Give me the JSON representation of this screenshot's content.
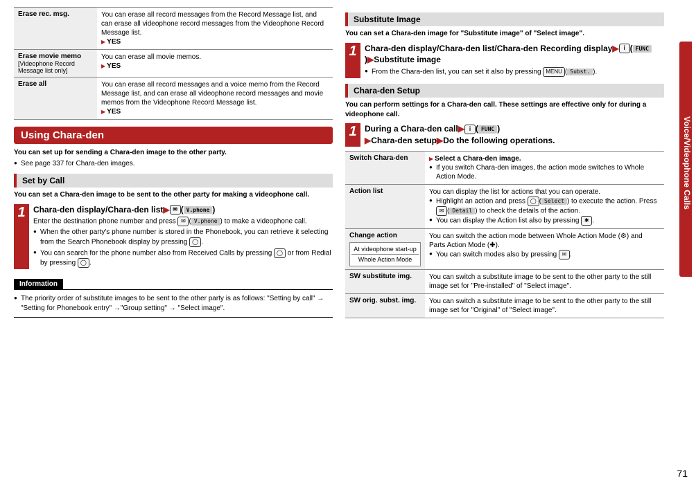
{
  "sideTab": "Voice/Videophone Calls",
  "pageNumber": "71",
  "leftCol": {
    "eraseRows": [
      {
        "label": "Erase rec. msg.",
        "sublabel": "",
        "desc": "You can erase all record messages from the Record Message list, and can erase all videophone record messages from the Videophone Record Message list.",
        "yes": "YES"
      },
      {
        "label": "Erase movie memo",
        "sublabel": "[Videophone Record Message list only]",
        "desc": "You can erase all movie memos.",
        "yes": "YES"
      },
      {
        "label": "Erase all",
        "sublabel": "",
        "desc": "You can erase all record messages and a voice memo from the Record Message list, and can erase all videophone record messages and movie memos from the Videophone Record Message list.",
        "yes": "YES"
      }
    ],
    "chapter": "Using Chara-den",
    "chapterIntro": "You can set up for sending a Chara-den image to the other party.",
    "chapterNote": "See page 337 for Chara-den images.",
    "section1": "Set by Call",
    "section1Intro": "You can set a Chara-den image to be sent to the other party for making a videophone call.",
    "step1Title1": "Chara-den display/Chara-den list",
    "step1BtnIcon": "✉",
    "step1Pill": "V.phone",
    "step1Body1": "Enter the destination phone number and press ",
    "step1Body1b": " to make a videophone call.",
    "step1Bul1": "When the other party's phone number is stored in the Phonebook, you can retrieve it selecting from the Search Phonebook display by pressing ",
    "step1Bul1Btn": "◯",
    "step1Bul1End": ".",
    "step1Bul2": "You can search for the phone number also from Received Calls by pressing ",
    "step1Bul2Btn": "◯",
    "step1Bul2Mid": " or from Redial by pressing ",
    "step1Bul2Btn2": "◯",
    "step1Bul2End": ".",
    "infoHeader": "Information",
    "infoBody": "The priority order of substitute images to be sent to the other party is as follows: \"Setting by call\" → \"Setting for Phonebook entry\" →\"Group setting\" → \"Select image\"."
  },
  "rightCol": {
    "section2": "Substitute Image",
    "section2Intro": "You can set a Chara-den image for \"Substitute image\" of \"Select image\".",
    "step2Title1": "Chara-den display/Chara-den list/Chara-den Recording display",
    "step2BtnIcon": "ｉ",
    "step2Pill": "FUNC",
    "step2Title2": "Substitute image",
    "step2Note": "From the Chara-den list, you can set it also by pressing ",
    "step2NoteBtn": "MENU",
    "step2NotePill": "Subst.",
    "section3": "Chara-den Setup",
    "section3Intro": "You can perform settings for a Chara-den call. These settings are effective only for during a videophone call.",
    "step3Title1": "During a Chara-den call",
    "step3BtnIcon": "ｉ",
    "step3Pill": "FUNC",
    "step3Title2": "Chara-den setup",
    "step3Title3": "Do the following operations.",
    "setupRows": [
      {
        "label": "Switch Chara-den",
        "lead": "Select a Chara-den image.",
        "bullets": [
          "If you switch Chara-den images, the action mode switches to Whole Action Mode."
        ]
      },
      {
        "label": "Action list",
        "plain": "You can display the list for actions that you can operate.",
        "bullets": [
          "Highlight an action and press ◯(Select) to execute the action. Press ✉(Detail) to check the details of the action.",
          "You can display the Action list also by pressing ✱."
        ]
      },
      {
        "label": "Change action",
        "sublabelBox": [
          "At videophone start-up",
          "Whole Action Mode"
        ],
        "plain": "You can switch the action mode between Whole Action Mode (⚙) and Parts Action Mode (✚).",
        "bullets": [
          "You can switch modes also by pressing ✉."
        ]
      },
      {
        "label": "SW substitute img.",
        "plain": "You can switch a substitute image to be sent to the other party to the still image set for \"Pre-installed\" of \"Select image\"."
      },
      {
        "label": "SW orig. subst. img.",
        "plain": "You can switch a substitute image to be sent to the other party to the still image set for \"Original\" of \"Select image\"."
      }
    ]
  }
}
